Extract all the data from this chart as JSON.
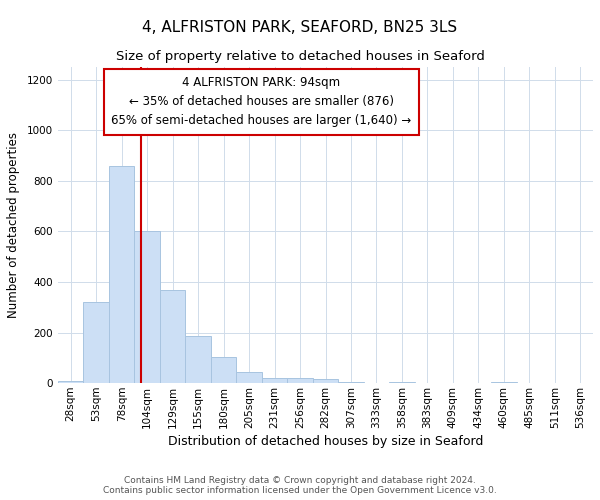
{
  "title": "4, ALFRISTON PARK, SEAFORD, BN25 3LS",
  "subtitle": "Size of property relative to detached houses in Seaford",
  "xlabel": "Distribution of detached houses by size in Seaford",
  "ylabel": "Number of detached properties",
  "bar_labels": [
    "28sqm",
    "53sqm",
    "78sqm",
    "104sqm",
    "129sqm",
    "155sqm",
    "180sqm",
    "205sqm",
    "231sqm",
    "256sqm",
    "282sqm",
    "307sqm",
    "333sqm",
    "358sqm",
    "383sqm",
    "409sqm",
    "434sqm",
    "460sqm",
    "485sqm",
    "511sqm",
    "536sqm"
  ],
  "bar_values": [
    10,
    320,
    860,
    600,
    370,
    185,
    105,
    45,
    20,
    20,
    18,
    5,
    0,
    3,
    0,
    0,
    0,
    5,
    0,
    0,
    0
  ],
  "bar_color": "#ccdff5",
  "bar_edge_color": "#a8c4e0",
  "vline_color": "#cc0000",
  "vline_pos": 2.75,
  "annotation_text": "4 ALFRISTON PARK: 94sqm\n← 35% of detached houses are smaller (876)\n65% of semi-detached houses are larger (1,640) →",
  "annotation_box_color": "#ffffff",
  "annotation_box_edge_color": "#cc0000",
  "ylim": [
    0,
    1250
  ],
  "yticks": [
    0,
    200,
    400,
    600,
    800,
    1000,
    1200
  ],
  "footnote1": "Contains HM Land Registry data © Crown copyright and database right 2024.",
  "footnote2": "Contains public sector information licensed under the Open Government Licence v3.0.",
  "title_fontsize": 11,
  "subtitle_fontsize": 9.5,
  "xlabel_fontsize": 9,
  "ylabel_fontsize": 8.5,
  "tick_fontsize": 7.5,
  "annotation_fontsize": 8.5,
  "footnote_fontsize": 6.5,
  "background_color": "#ffffff",
  "grid_color": "#d0dcea"
}
